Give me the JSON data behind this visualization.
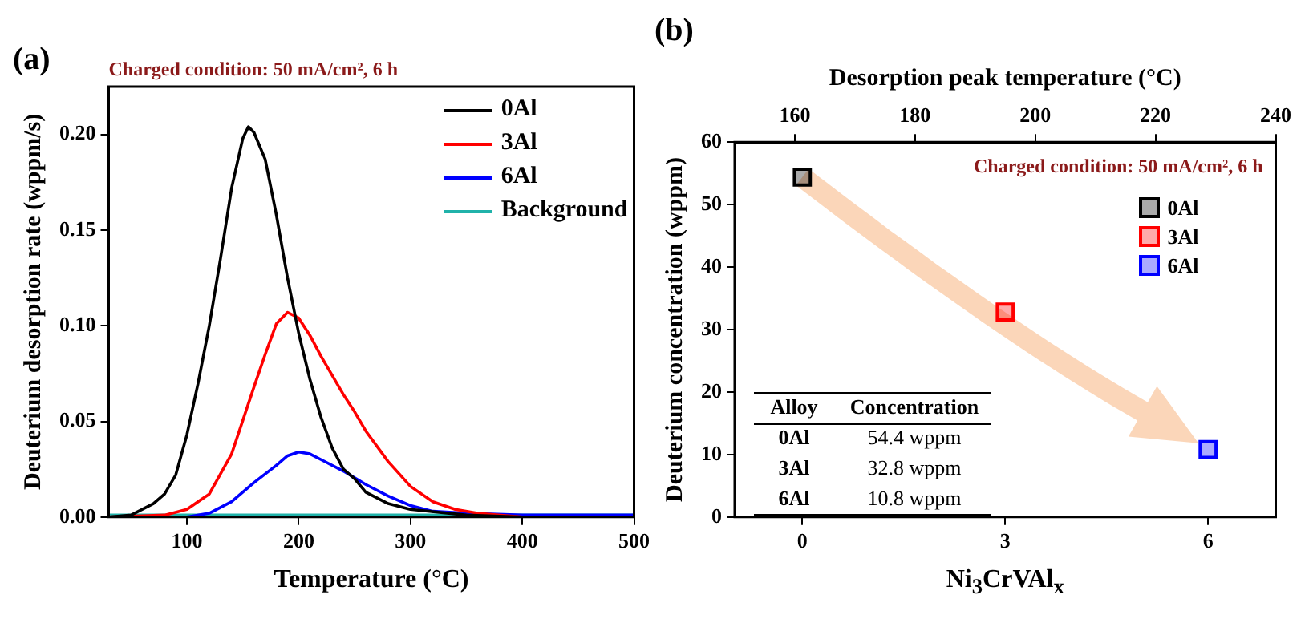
{
  "chart_data": [
    {
      "type": "line",
      "title": "(a)",
      "xlabel": "Temperature (°C)",
      "ylabel": "Deuterium desorption rate (wppm/s)",
      "annotations": [
        "Charged condition: 50 mA/cm², 6 h"
      ],
      "xlim": [
        30,
        500
      ],
      "xticks": [
        100,
        200,
        300,
        400,
        500
      ],
      "ylim": [
        0,
        0.225
      ],
      "yticks": [
        {
          "value": 0,
          "label": "0.00"
        },
        0.05,
        {
          "value": 0.1,
          "label": "0.10"
        },
        0.15,
        {
          "value": 0.2,
          "label": "0.20"
        }
      ],
      "legend": "top right",
      "marker": "none",
      "line_style": "solid",
      "series": [
        {
          "name": "0Al",
          "color": "#000000",
          "x": [
            30,
            50,
            70,
            80,
            90,
            100,
            110,
            120,
            130,
            140,
            150,
            155,
            160,
            170,
            180,
            190,
            200,
            210,
            220,
            230,
            240,
            250,
            260,
            280,
            300,
            350,
            400,
            500
          ],
          "values": [
            0,
            0.001,
            0.007,
            0.012,
            0.022,
            0.043,
            0.07,
            0.1,
            0.135,
            0.172,
            0.198,
            0.204,
            0.201,
            0.187,
            0.158,
            0.125,
            0.096,
            0.072,
            0.052,
            0.036,
            0.025,
            0.02,
            0.013,
            0.007,
            0.004,
            0.001,
            0,
            0
          ]
        },
        {
          "name": "3Al",
          "color": "#ff0000",
          "x": [
            30,
            80,
            100,
            120,
            140,
            160,
            170,
            180,
            190,
            200,
            210,
            220,
            240,
            250,
            260,
            280,
            300,
            320,
            340,
            360,
            400,
            430,
            500
          ],
          "values": [
            0,
            0.001,
            0.004,
            0.012,
            0.033,
            0.068,
            0.085,
            0.101,
            0.107,
            0.104,
            0.095,
            0.084,
            0.064,
            0.055,
            0.045,
            0.029,
            0.016,
            0.008,
            0.004,
            0.002,
            0,
            0,
            0
          ]
        },
        {
          "name": "6Al",
          "color": "#0000ff",
          "x": [
            30,
            100,
            120,
            140,
            160,
            180,
            190,
            200,
            210,
            220,
            240,
            260,
            280,
            300,
            320,
            350,
            400,
            500
          ],
          "values": [
            0,
            0,
            0.002,
            0.008,
            0.018,
            0.027,
            0.032,
            0.034,
            0.033,
            0.03,
            0.024,
            0.017,
            0.011,
            0.006,
            0.003,
            0.002,
            0.001,
            0.001
          ]
        },
        {
          "name": "Background",
          "color": "#20b2aa",
          "x": [
            30,
            500
          ],
          "values": [
            0.001,
            0.001
          ]
        }
      ]
    },
    {
      "type": "scatter",
      "title": "(b)",
      "xlabel": "Ni$_{3}$CrVAl$_{x}$",
      "ylabel": "Deuterium concentration (wppm)",
      "x2label": "Desorption peak temperature (°C)",
      "annotations": [
        "Charged condition: 50 mA/cm², 6 h",
        "Alloy",
        "Concentration",
        "0Al",
        "54.4 wppm",
        "3Al",
        "32.8 wppm",
        "6Al",
        "10.8 wppm"
      ],
      "xlim": [
        -1,
        7
      ],
      "xticks": [
        0,
        3,
        6
      ],
      "x2lim": [
        150,
        240
      ],
      "x2ticks": [
        160,
        180,
        200,
        220,
        240
      ],
      "ylim": [
        0,
        60
      ],
      "yticks": [
        0,
        10,
        20,
        30,
        40,
        50,
        60
      ],
      "legend": "top right",
      "marker": "square",
      "series": [
        {
          "name": "0Al",
          "color": "#000000",
          "x": [
            0
          ],
          "values": [
            54.4
          ]
        },
        {
          "name": "3Al",
          "color": "#ff0000",
          "x": [
            3
          ],
          "values": [
            32.8
          ]
        },
        {
          "name": "6Al",
          "color": "#0000ff",
          "x": [
            6
          ],
          "values": [
            10.8
          ]
        }
      ]
    }
  ]
}
